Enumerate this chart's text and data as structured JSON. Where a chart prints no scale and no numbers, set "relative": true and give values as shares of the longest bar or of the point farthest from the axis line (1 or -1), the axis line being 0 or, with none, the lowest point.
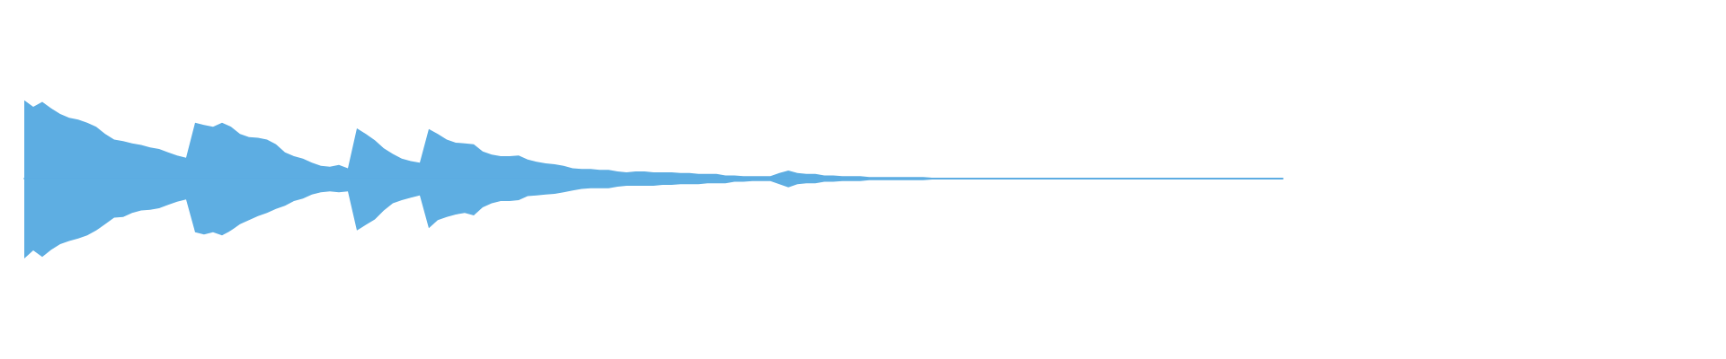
{
  "chart_data": {
    "type": "area",
    "relative": true,
    "categories": [
      null,
      null,
      null,
      null,
      null,
      null,
      null,
      null,
      null,
      null,
      null,
      null,
      null,
      null,
      null,
      null,
      null,
      null,
      null,
      null,
      null,
      null,
      null,
      null,
      null,
      null,
      null,
      null,
      null,
      null,
      null,
      null,
      null,
      null,
      null,
      null,
      null,
      null,
      null,
      null,
      null,
      null,
      null,
      null,
      null,
      null,
      null,
      null,
      null,
      null,
      null,
      null,
      null,
      null,
      null,
      null,
      null,
      null,
      null,
      null,
      null,
      null,
      null,
      null,
      null,
      null,
      null,
      null,
      null,
      null,
      null,
      null,
      null,
      null,
      null,
      null,
      null,
      null,
      null,
      null,
      null,
      null,
      null,
      null,
      null,
      null,
      null,
      null,
      null,
      null,
      null,
      null,
      null,
      null,
      null,
      null,
      null,
      null,
      null,
      null,
      null,
      null,
      null,
      null,
      null,
      null,
      null,
      null,
      null,
      null,
      null,
      null,
      null,
      null,
      null,
      null,
      null,
      null,
      null,
      null,
      null,
      null,
      null,
      null,
      null,
      null,
      null,
      null,
      null,
      null,
      null,
      null,
      null,
      null,
      null,
      null,
      null,
      null,
      null,
      null,
      null
    ],
    "series": [
      {
        "color": "#5dade2",
        "values": [
          0.98,
          0.9,
          0.96,
          0.88,
          0.81,
          0.76,
          0.74,
          0.7,
          0.65,
          0.56,
          0.49,
          0.47,
          0.44,
          0.42,
          0.39,
          0.37,
          0.33,
          0.29,
          0.26,
          0.7,
          0.67,
          0.65,
          0.7,
          0.65,
          0.56,
          0.52,
          0.51,
          0.49,
          0.43,
          0.33,
          0.28,
          0.25,
          0.2,
          0.16,
          0.15,
          0.17,
          0.13,
          0.63,
          0.56,
          0.48,
          0.38,
          0.31,
          0.25,
          0.22,
          0.2,
          0.62,
          0.56,
          0.49,
          0.45,
          0.44,
          0.43,
          0.34,
          0.3,
          0.28,
          0.28,
          0.29,
          0.24,
          0.21,
          0.19,
          0.18,
          0.16,
          0.13,
          0.12,
          0.12,
          0.11,
          0.11,
          0.09,
          0.08,
          0.09,
          0.09,
          0.08,
          0.08,
          0.08,
          0.07,
          0.07,
          0.06,
          0.06,
          0.06,
          0.04,
          0.04,
          0.03,
          0.03,
          0.03,
          0.03,
          0.07,
          0.1,
          0.07,
          0.06,
          0.06,
          0.04,
          0.04,
          0.03,
          0.03,
          0.03,
          0.02,
          0.02,
          0.02,
          0.02,
          0.02,
          0.02,
          0.02,
          0.01,
          0.01,
          0.01,
          0.01,
          0.01,
          0.01,
          0.01,
          0.01,
          0.01,
          0.01,
          0.01,
          0.01,
          0.01,
          0.01,
          0.01,
          0.01,
          0.01,
          0.01,
          0.01,
          0.01,
          0.01,
          0.01,
          0.01,
          0.01,
          0.01,
          0.01,
          0.01,
          0.01,
          0.01,
          0.01,
          0.01,
          0.01,
          0.01,
          0.01,
          0.01,
          0.01,
          0.01,
          0.01,
          0.01,
          0.01
        ]
      },
      {
        "color": "#5eaee2",
        "values": [
          -1,
          -0.9,
          -0.98,
          -0.89,
          -0.82,
          -0.78,
          -0.75,
          -0.71,
          -0.65,
          -0.57,
          -0.49,
          -0.48,
          -0.43,
          -0.4,
          -0.39,
          -0.37,
          -0.33,
          -0.29,
          -0.26,
          -0.67,
          -0.7,
          -0.67,
          -0.71,
          -0.65,
          -0.57,
          -0.52,
          -0.47,
          -0.43,
          -0.38,
          -0.34,
          -0.28,
          -0.25,
          -0.2,
          -0.17,
          -0.16,
          -0.17,
          -0.16,
          -0.65,
          -0.58,
          -0.51,
          -0.4,
          -0.31,
          -0.27,
          -0.24,
          -0.21,
          -0.62,
          -0.52,
          -0.48,
          -0.45,
          -0.43,
          -0.46,
          -0.36,
          -0.31,
          -0.28,
          -0.28,
          -0.27,
          -0.22,
          -0.21,
          -0.2,
          -0.19,
          -0.17,
          -0.15,
          -0.13,
          -0.12,
          -0.12,
          -0.12,
          -0.1,
          -0.09,
          -0.09,
          -0.09,
          -0.09,
          -0.08,
          -0.08,
          -0.07,
          -0.07,
          -0.07,
          -0.06,
          -0.06,
          -0.06,
          -0.04,
          -0.04,
          -0.03,
          -0.03,
          -0.03,
          -0.07,
          -0.11,
          -0.07,
          -0.06,
          -0.06,
          -0.04,
          -0.04,
          -0.03,
          -0.03,
          -0.03,
          -0.02,
          -0.02,
          -0.02,
          -0.02,
          -0.02,
          -0.02,
          -0.02,
          -0.01,
          -0.01,
          -0.01,
          -0.01,
          -0.01,
          -0.01,
          -0.01,
          -0.01,
          -0.01,
          -0.01,
          -0.01,
          -0.01,
          -0.01,
          -0.01,
          -0.01,
          -0.01,
          -0.01,
          -0.01,
          -0.01,
          -0.01,
          -0.01,
          -0.01,
          -0.01,
          -0.01,
          -0.01,
          -0.01,
          -0.01,
          -0.01,
          -0.01,
          -0.01,
          -0.01,
          -0.01,
          -0.01,
          -0.01,
          -0.01,
          -0.01,
          -0.01,
          -0.01,
          -0.01,
          -0.01
        ]
      }
    ],
    "ref_lines": [
      {
        "axis": "y",
        "value": 0,
        "color": "#5dade2"
      }
    ]
  }
}
